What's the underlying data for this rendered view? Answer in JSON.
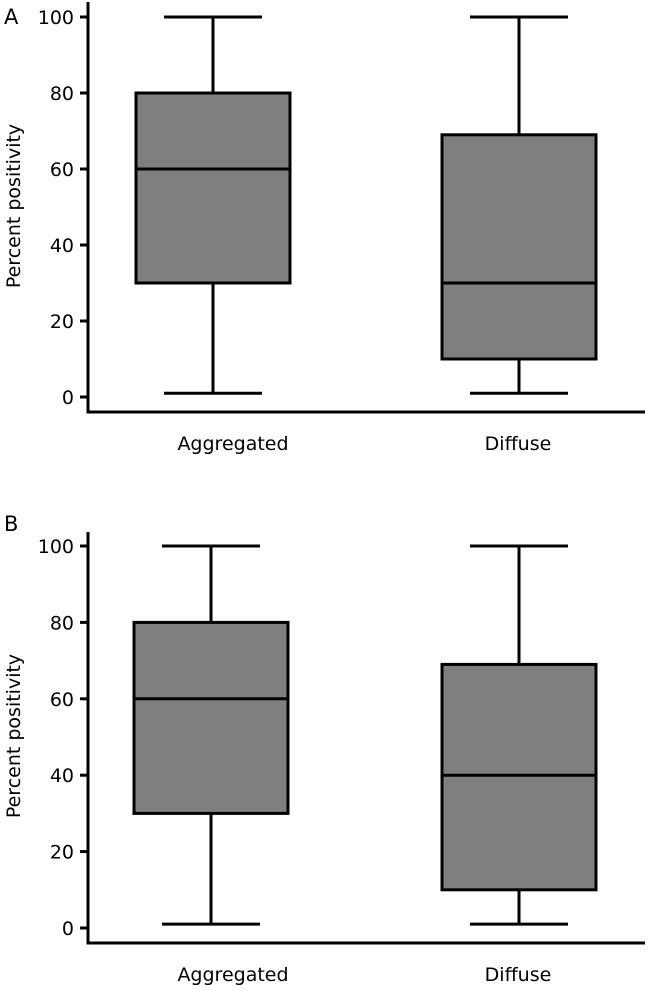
{
  "chart_data": [
    {
      "type": "boxplot",
      "panel_label": "A",
      "ylabel": "Percent positivity",
      "ylim": [
        0,
        100
      ],
      "yticks": [
        0,
        20,
        40,
        60,
        80,
        100
      ],
      "categories": [
        "Aggregated",
        "Diffuse"
      ],
      "boxes": [
        {
          "name": "Aggregated",
          "min": 1,
          "q1": 30,
          "median": 60,
          "q3": 80,
          "max": 100
        },
        {
          "name": "Diffuse",
          "min": 1,
          "q1": 10,
          "median": 30,
          "q3": 69,
          "max": 100
        }
      ]
    },
    {
      "type": "boxplot",
      "panel_label": "B",
      "ylabel": "Percent positivity",
      "ylim": [
        0,
        100
      ],
      "yticks": [
        0,
        20,
        40,
        60,
        80,
        100
      ],
      "categories": [
        "Aggregated",
        "Diffuse"
      ],
      "boxes": [
        {
          "name": "Aggregated",
          "min": 1,
          "q1": 30,
          "median": 60,
          "q3": 80,
          "max": 100
        },
        {
          "name": "Diffuse",
          "min": 1,
          "q1": 10,
          "median": 40,
          "q3": 69,
          "max": 100
        }
      ]
    }
  ]
}
